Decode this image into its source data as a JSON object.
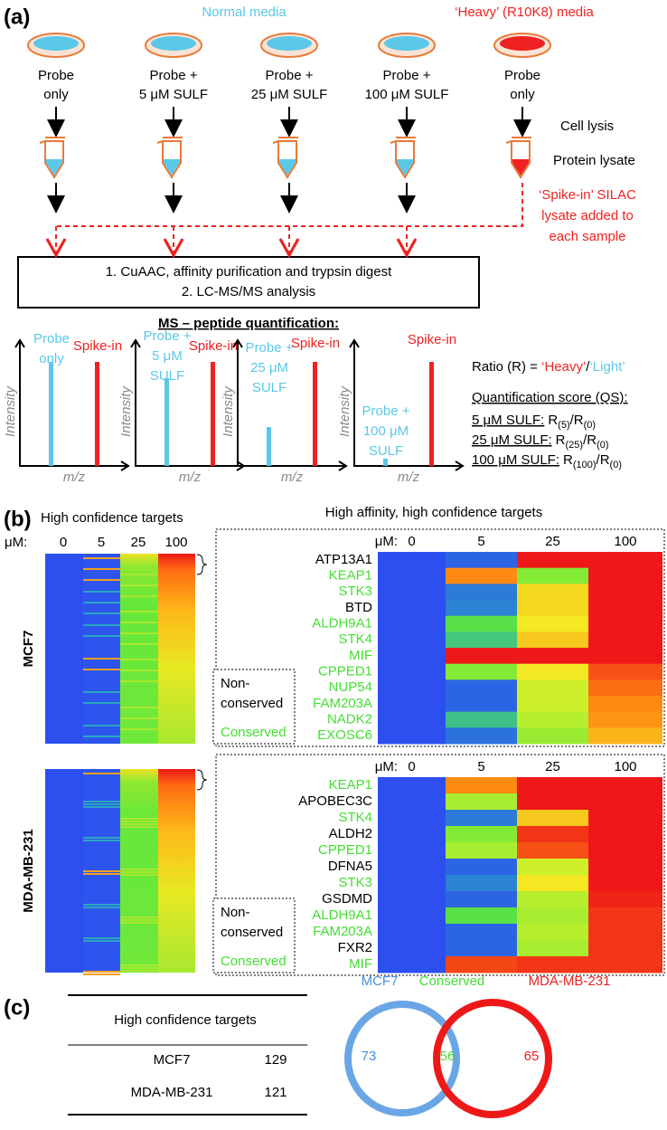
{
  "panel_a": {
    "label": "(a)",
    "normal_media": "Normal media",
    "heavy_media": "‘Heavy’ (R10K8) media",
    "conditions": [
      [
        "Probe",
        "only"
      ],
      [
        "Probe +",
        "5 μM SULF"
      ],
      [
        "Probe +",
        "25 μM SULF"
      ],
      [
        "Probe +",
        "100 μM SULF"
      ],
      [
        "Probe",
        "only"
      ]
    ],
    "cell_lysis": "Cell lysis",
    "protein_lysate": "Protein lysate",
    "spike_note": [
      "‘Spike-in’ SILAC",
      "lysate added to",
      "each sample"
    ],
    "steps": [
      "1. CuAAC, affinity purification and trypsin digest",
      "2. LC-MS/MS analysis"
    ],
    "ms_title": "MS – peptide quantification:",
    "spectra": {
      "light_labels": [
        [
          "Probe",
          "only"
        ],
        [
          "Probe +",
          "5 μM",
          "SULF"
        ],
        [
          "Probe +",
          "25 μM",
          "SULF"
        ],
        [
          "Probe +",
          "100 μM",
          "SULF"
        ]
      ],
      "heavy_label": "Spike-in",
      "y_label": "Intensity",
      "x_label": "m/z"
    },
    "ratio": {
      "prefix": "Ratio (R) = ",
      "heavy": "‘Heavy’",
      "slash": "/",
      "light": "‘Light’"
    },
    "qs_title": "Quantification score (QS):",
    "qs": [
      {
        "label": "5 μM SULF:",
        "num": "R",
        "num_sub": "(5)",
        "den": "/R",
        "den_sub": "(0)"
      },
      {
        "label": "25 μM SULF:",
        "num": "R",
        "num_sub": "(25)",
        "den": "/R",
        "den_sub": "(0)"
      },
      {
        "label": "100 μM SULF:",
        "num": "R",
        "num_sub": "(100)",
        "den": "/R",
        "den_sub": "(0)"
      }
    ]
  },
  "panel_b": {
    "label": "(b)",
    "overview_title": "High confidence targets",
    "zoom_title": "High affinity, high confidence targets",
    "unit": "μM:",
    "concentrations": [
      0,
      5,
      25,
      100
    ],
    "colormap": [
      "#2d4ff0",
      "#2aa6c0",
      "#5ee83a",
      "#f2f224",
      "#ff8a12",
      "#ee1818"
    ],
    "conserved_color": "#44dd33",
    "nonconserved_color": "#000000",
    "legend": {
      "nonconserved": [
        "Non-",
        "conserved"
      ],
      "conserved": "Conserved"
    },
    "cell_lines": [
      {
        "name": "MCF7",
        "genes": [
          {
            "name": "ATP13A1",
            "conserved": false,
            "values": [
              0,
              0.05,
              1,
              1
            ]
          },
          {
            "name": "KEAP1",
            "conserved": true,
            "values": [
              0,
              0.8,
              0.45,
              1
            ]
          },
          {
            "name": "STK3",
            "conserved": true,
            "values": [
              0,
              0.1,
              0.65,
              1
            ]
          },
          {
            "name": "BTD",
            "conserved": false,
            "values": [
              0,
              0.12,
              0.65,
              1
            ]
          },
          {
            "name": "ALDH9A1",
            "conserved": true,
            "values": [
              0,
              0.38,
              0.62,
              1
            ]
          },
          {
            "name": "STK4",
            "conserved": true,
            "values": [
              0,
              0.3,
              0.68,
              1
            ]
          },
          {
            "name": "MIF",
            "conserved": true,
            "values": [
              0,
              1,
              1,
              1
            ]
          },
          {
            "name": "CPPED1",
            "conserved": true,
            "values": [
              0,
              0.45,
              0.62,
              0.9
            ]
          },
          {
            "name": "NUP54",
            "conserved": true,
            "values": [
              0,
              0.05,
              0.55,
              0.85
            ]
          },
          {
            "name": "FAM203A",
            "conserved": true,
            "values": [
              0,
              0.05,
              0.55,
              0.8
            ]
          },
          {
            "name": "NADK2",
            "conserved": true,
            "values": [
              0,
              0.28,
              0.52,
              0.78
            ]
          },
          {
            "name": "EXOSC6",
            "conserved": true,
            "values": [
              0,
              0.08,
              0.48,
              0.72
            ]
          }
        ]
      },
      {
        "name": "MDA-MB-231",
        "genes": [
          {
            "name": "KEAP1",
            "conserved": true,
            "values": [
              0,
              0.8,
              1,
              1
            ]
          },
          {
            "name": "APOBEC3C",
            "conserved": false,
            "values": [
              0,
              0.5,
              1,
              1
            ]
          },
          {
            "name": "STK4",
            "conserved": true,
            "values": [
              0,
              0.1,
              0.68,
              1
            ]
          },
          {
            "name": "ALDH2",
            "conserved": false,
            "values": [
              0,
              0.45,
              0.95,
              1
            ]
          },
          {
            "name": "CPPED1",
            "conserved": true,
            "values": [
              0,
              0.5,
              0.9,
              1
            ]
          },
          {
            "name": "DFNA5",
            "conserved": false,
            "values": [
              0,
              0.05,
              0.55,
              1
            ]
          },
          {
            "name": "STK3",
            "conserved": true,
            "values": [
              0,
              0.12,
              0.62,
              1
            ]
          },
          {
            "name": "GSDMD",
            "conserved": false,
            "values": [
              0,
              0.05,
              0.52,
              0.98
            ]
          },
          {
            "name": "ALDH9A1",
            "conserved": true,
            "values": [
              0,
              0.38,
              0.5,
              0.95
            ]
          },
          {
            "name": "FAM203A",
            "conserved": true,
            "values": [
              0,
              0.05,
              0.52,
              0.95
            ]
          },
          {
            "name": "FXR2",
            "conserved": false,
            "values": [
              0,
              0.05,
              0.5,
              0.95
            ]
          },
          {
            "name": "MIF",
            "conserved": true,
            "values": [
              0,
              0.92,
              0.95,
              0.95
            ]
          }
        ]
      }
    ]
  },
  "panel_c": {
    "label": "(c)",
    "table": {
      "header": "High confidence targets",
      "rows": [
        {
          "name": "MCF7",
          "count": 129
        },
        {
          "name": "MDA-MB-231",
          "count": 121
        }
      ]
    },
    "venn": {
      "left_label": "MCF7",
      "overlap_label": "Conserved",
      "right_label": "MDA-MB-231",
      "left_only": 73,
      "overlap": 56,
      "right_only": 65
    }
  }
}
